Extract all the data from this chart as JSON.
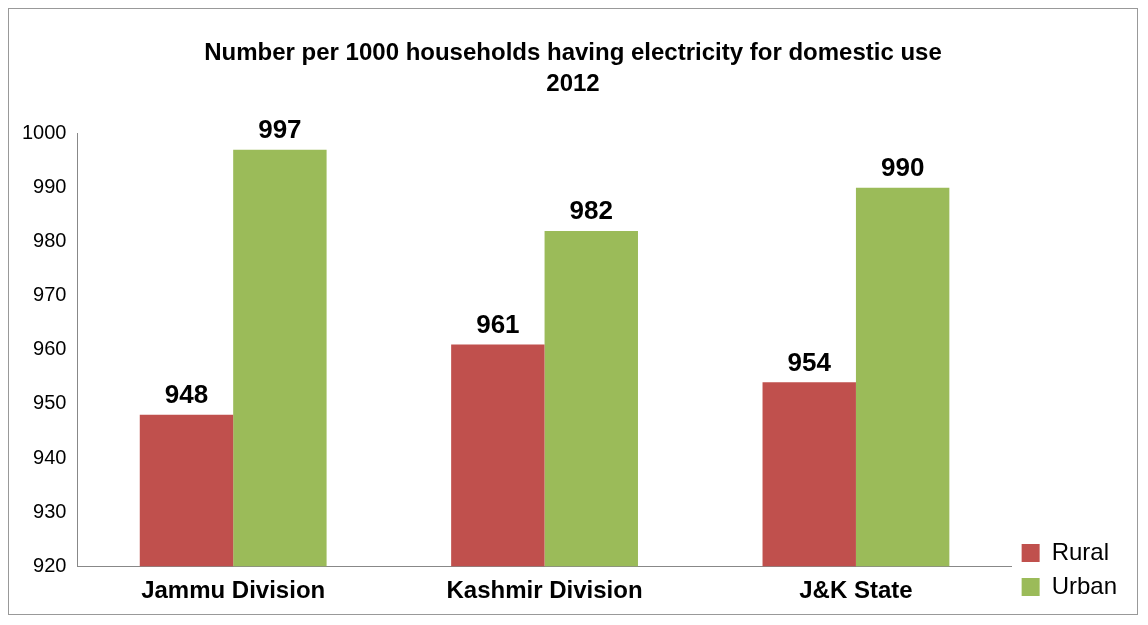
{
  "chart_data": {
    "type": "bar",
    "title": "Number per 1000 households having electricity for domestic use",
    "subtitle": "2012",
    "categories": [
      "Jammu Division",
      "Kashmir Division",
      "J&K State"
    ],
    "series": [
      {
        "name": "Rural",
        "color": "#c0504d",
        "values": [
          948,
          961,
          954
        ]
      },
      {
        "name": "Urban",
        "color": "#9bbb59",
        "values": [
          997,
          982,
          990
        ]
      }
    ],
    "ylim": [
      920,
      1000
    ],
    "yticks": [
      920,
      930,
      940,
      950,
      960,
      970,
      980,
      990,
      1000
    ],
    "grid": false,
    "legend": "right",
    "data_labels": true
  }
}
